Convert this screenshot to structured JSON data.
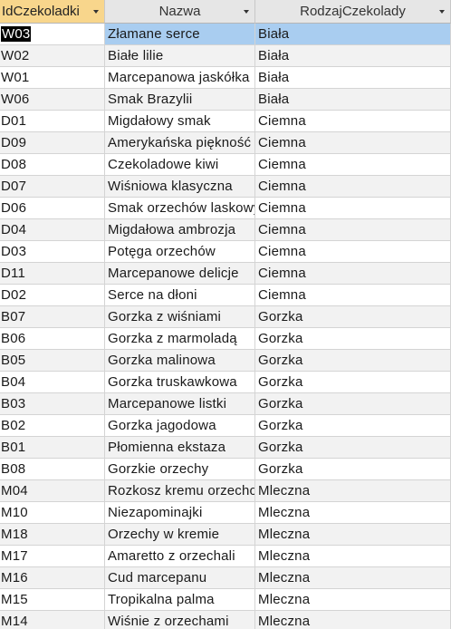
{
  "columns": [
    {
      "label": "IdCzekoladki"
    },
    {
      "label": "Nazwa"
    },
    {
      "label": "RodzajCzekolady"
    }
  ],
  "rows": [
    {
      "id": "W03",
      "name": "Złamane serce",
      "type": "Biała"
    },
    {
      "id": "W02",
      "name": "Białe lilie",
      "type": "Biała"
    },
    {
      "id": "W01",
      "name": "Marcepanowa jaskółka",
      "type": "Biała"
    },
    {
      "id": "W06",
      "name": "Smak Brazylii",
      "type": "Biała"
    },
    {
      "id": "D01",
      "name": "Migdałowy smak",
      "type": "Ciemna"
    },
    {
      "id": "D09",
      "name": "Amerykańska piękność",
      "type": "Ciemna"
    },
    {
      "id": "D08",
      "name": "Czekoladowe kiwi",
      "type": "Ciemna"
    },
    {
      "id": "D07",
      "name": "Wiśniowa klasyczna",
      "type": "Ciemna"
    },
    {
      "id": "D06",
      "name": "Smak orzechów laskowych",
      "type": "Ciemna"
    },
    {
      "id": "D04",
      "name": "Migdałowa ambrozja",
      "type": "Ciemna"
    },
    {
      "id": "D03",
      "name": "Potęga orzechów",
      "type": "Ciemna"
    },
    {
      "id": "D11",
      "name": "Marcepanowe delicje",
      "type": "Ciemna"
    },
    {
      "id": "D02",
      "name": "Serce na dłoni",
      "type": "Ciemna"
    },
    {
      "id": "B07",
      "name": "Gorzka z wiśniami",
      "type": "Gorzka"
    },
    {
      "id": "B06",
      "name": "Gorzka z marmoladą",
      "type": "Gorzka"
    },
    {
      "id": "B05",
      "name": "Gorzka malinowa",
      "type": "Gorzka"
    },
    {
      "id": "B04",
      "name": "Gorzka truskawkowa",
      "type": "Gorzka"
    },
    {
      "id": "B03",
      "name": "Marcepanowe listki",
      "type": "Gorzka"
    },
    {
      "id": "B02",
      "name": "Gorzka jagodowa",
      "type": "Gorzka"
    },
    {
      "id": "B01",
      "name": "Płomienna ekstaza",
      "type": "Gorzka"
    },
    {
      "id": "B08",
      "name": "Gorzkie orzechy",
      "type": "Gorzka"
    },
    {
      "id": "M04",
      "name": "Rozkosz kremu orzechowego",
      "type": "Mleczna"
    },
    {
      "id": "M10",
      "name": "Niezapominajki",
      "type": "Mleczna"
    },
    {
      "id": "M18",
      "name": "Orzechy w kremie",
      "type": "Mleczna"
    },
    {
      "id": "M17",
      "name": "Amaretto z orzechali",
      "type": "Mleczna"
    },
    {
      "id": "M16",
      "name": "Cud marcepanu",
      "type": "Mleczna"
    },
    {
      "id": "M15",
      "name": "Tropikalna palma",
      "type": "Mleczna"
    },
    {
      "id": "M14",
      "name": "Wiśnie z orzechami",
      "type": "Mleczna"
    }
  ],
  "selected_index": 0
}
